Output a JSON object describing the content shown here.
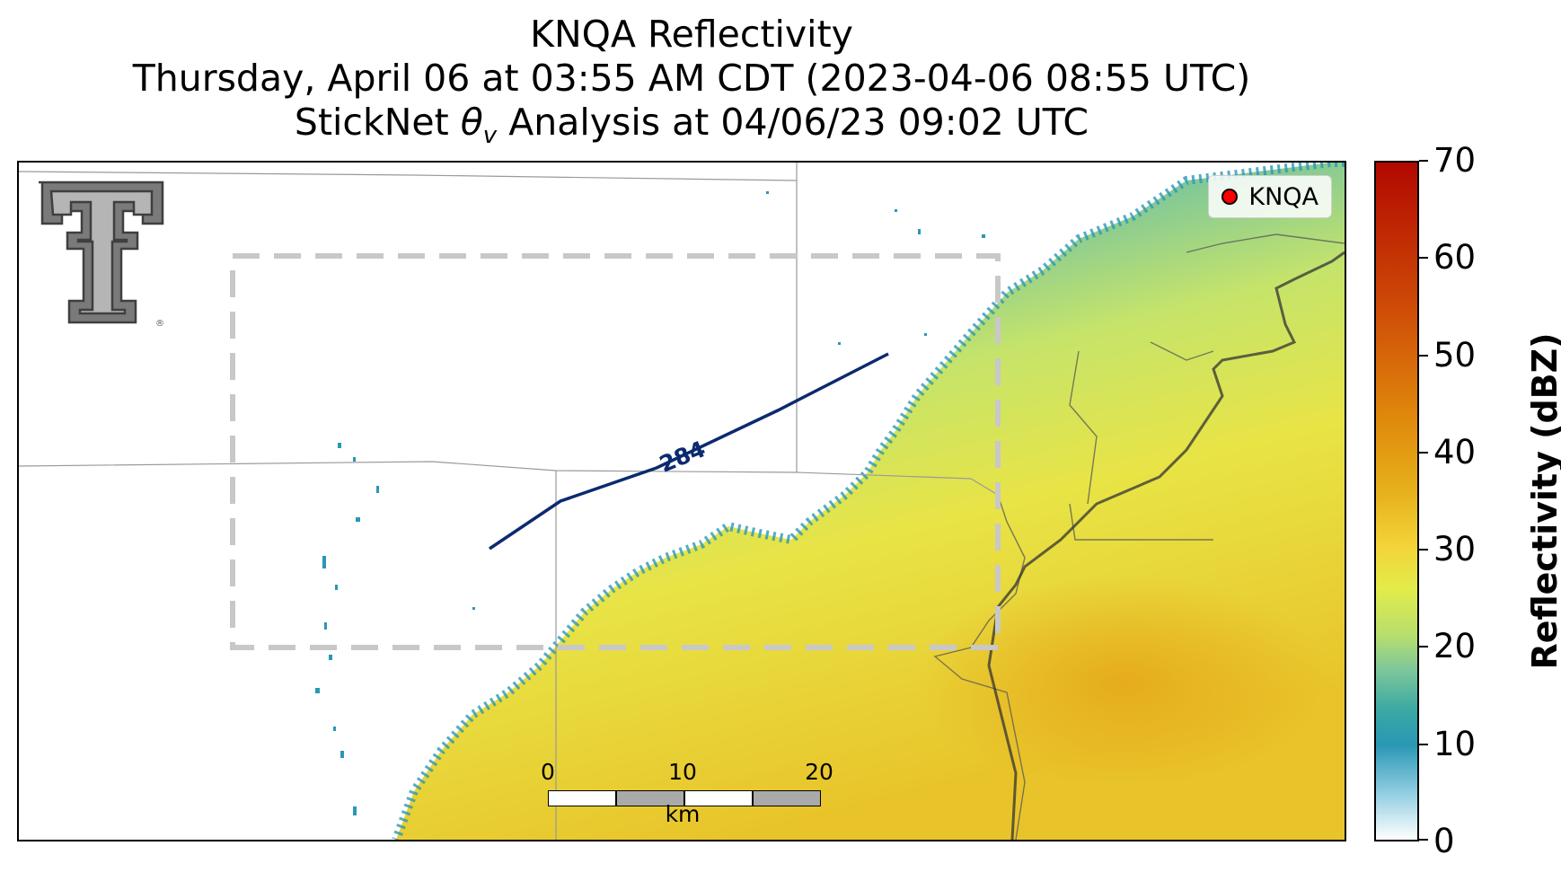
{
  "title": {
    "line1": "KNQA Reflectivity",
    "line2": "Thursday, April 06 at 03:55 AM CDT (2023-04-06 08:55 UTC)",
    "line3_prefix": "StickNet ",
    "line3_symbol": "θ",
    "line3_subscript": "v",
    "line3_suffix": " Analysis at 04/06/23 09:02 UTC"
  },
  "legend": {
    "label": "KNQA",
    "marker_color": "#ff0000"
  },
  "contour": {
    "label": "284",
    "color": "#0b2a6f"
  },
  "colorbar": {
    "label": "Reflectivity (dBZ)",
    "min": 0,
    "max": 70,
    "ticks": [
      "0",
      "10",
      "20",
      "30",
      "40",
      "50",
      "60",
      "70"
    ],
    "colors": [
      "#ffffff",
      "#2a97b5",
      "#7cc69b",
      "#e2ec4a",
      "#e7b21c",
      "#e08a0c",
      "#cf4d07",
      "#b20800"
    ]
  },
  "scalebar": {
    "ticks": [
      "0",
      "10",
      "20"
    ],
    "unit": "km"
  },
  "analysis_box": {
    "style": "dashed",
    "color": "#c8c8c8"
  },
  "logo": {
    "name": "double-t-logo",
    "mark": "®"
  }
}
